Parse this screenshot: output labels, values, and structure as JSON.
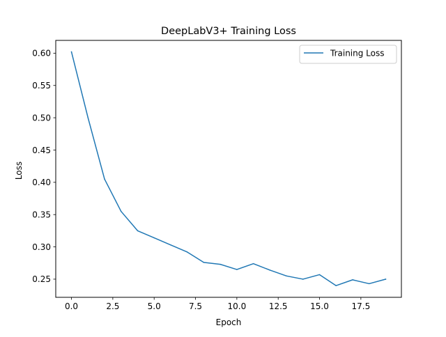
{
  "chart_data": {
    "type": "line",
    "title": "DeepLabV3+ Training Loss",
    "xlabel": "Epoch",
    "ylabel": "Loss",
    "xlim": [
      -0.95,
      19.95
    ],
    "ylim": [
      0.2219,
      0.6198
    ],
    "xticks": [
      0,
      2.5,
      5,
      7.5,
      10,
      12.5,
      15,
      17.5
    ],
    "xtick_labels": [
      "0.0",
      "2.5",
      "5.0",
      "7.5",
      "10.0",
      "12.5",
      "15.0",
      "17.5"
    ],
    "yticks": [
      0.25,
      0.3,
      0.35,
      0.4,
      0.45,
      0.5,
      0.55,
      0.6
    ],
    "ytick_labels": [
      "0.25",
      "0.30",
      "0.35",
      "0.40",
      "0.45",
      "0.50",
      "0.55",
      "0.60"
    ],
    "grid": false,
    "legend_position": "top-right",
    "series": [
      {
        "name": "Training Loss",
        "color": "#1f77b4",
        "x": [
          0,
          1,
          2,
          3,
          4,
          5,
          6,
          7,
          8,
          9,
          10,
          11,
          12,
          13,
          14,
          15,
          16,
          17,
          18,
          19
        ],
        "values": [
          0.602,
          0.5,
          0.405,
          0.355,
          0.325,
          0.314,
          0.303,
          0.292,
          0.276,
          0.273,
          0.265,
          0.274,
          0.264,
          0.255,
          0.25,
          0.257,
          0.24,
          0.249,
          0.243,
          0.25
        ]
      }
    ]
  }
}
